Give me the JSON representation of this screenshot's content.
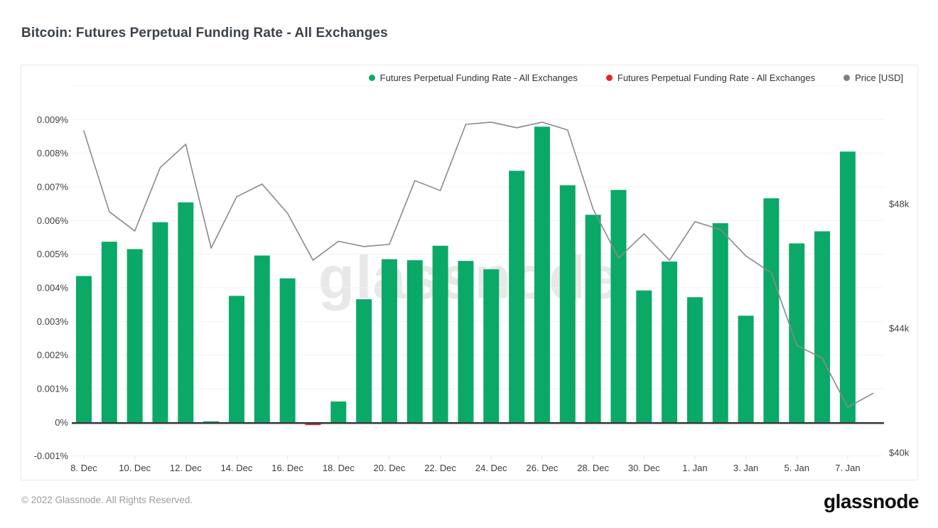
{
  "header": {
    "title": "Bitcoin: Futures Perpetual Funding Rate - All Exchanges"
  },
  "legend": {
    "items": [
      {
        "label": "Futures Perpetual Funding Rate - All Exchanges",
        "color": "#0ba968"
      },
      {
        "label": "Futures Perpetual Funding Rate - All Exchanges",
        "color": "#e0282b"
      },
      {
        "label": "Price [USD]",
        "color": "#808080"
      }
    ]
  },
  "watermark": {
    "text": "glassnode"
  },
  "footer": {
    "copyright": "© 2022 Glassnode. All Rights Reserved.",
    "logo_text": "glassnode"
  },
  "colors": {
    "positive_bar": "#0ba968",
    "negative_bar": "#e0282b",
    "price_line": "#8a8a8a",
    "gridline": "#f3f3f4",
    "zero_axis": "#3c3e40"
  },
  "chart_data": {
    "type": "bar+line",
    "title": "Bitcoin: Futures Perpetual Funding Rate - All Exchanges",
    "grid": "horizontal",
    "legend_position": "top-right",
    "categories": [
      "8. Dec",
      "9. Dec",
      "10. Dec",
      "11. Dec",
      "12. Dec",
      "13. Dec",
      "14. Dec",
      "15. Dec",
      "16. Dec",
      "17. Dec",
      "18. Dec",
      "19. Dec",
      "20. Dec",
      "21. Dec",
      "22. Dec",
      "23. Dec",
      "24. Dec",
      "25. Dec",
      "26. Dec",
      "27. Dec",
      "28. Dec",
      "29. Dec",
      "30. Dec",
      "31. Dec",
      "1. Jan",
      "2. Jan",
      "3. Jan",
      "4. Jan",
      "5. Jan",
      "6. Jan",
      "7. Jan"
    ],
    "series": [
      {
        "name": "Futures Perpetual Funding Rate - All Exchanges",
        "type": "bar",
        "axis": "left",
        "unit": "%",
        "color_positive": "#0ba968",
        "color_negative": "#e0282b",
        "values": [
          0.00435,
          0.00537,
          0.00515,
          0.00595,
          0.00654,
          3e-05,
          0.00376,
          0.00496,
          0.00428,
          -5e-05,
          0.00062,
          0.00366,
          0.00485,
          0.00482,
          0.00525,
          0.0048,
          0.00455,
          0.00748,
          0.00879,
          0.00705,
          0.00617,
          0.00691,
          0.00392,
          0.00478,
          0.00372,
          0.00592,
          0.00317,
          0.00666,
          0.00532,
          0.00568,
          0.00805
        ]
      },
      {
        "name": "Price [USD]",
        "type": "line",
        "axis": "right",
        "color": "#8a8a8a",
        "dates": [
          "8. Dec",
          "9. Dec",
          "10. Dec",
          "11. Dec",
          "12. Dec",
          "13. Dec",
          "14. Dec",
          "15. Dec",
          "16. Dec",
          "17. Dec",
          "18. Dec",
          "19. Dec",
          "20. Dec",
          "21. Dec",
          "22. Dec",
          "23. Dec",
          "24. Dec",
          "25. Dec",
          "26. Dec",
          "27. Dec",
          "28. Dec",
          "29. Dec",
          "30. Dec",
          "31. Dec",
          "1. Jan",
          "2. Jan",
          "3. Jan",
          "4. Jan",
          "5. Jan",
          "6. Jan",
          "7. Jan",
          "8. Jan"
        ],
        "values_usd": [
          50350,
          47750,
          47130,
          49170,
          49920,
          46580,
          48230,
          48640,
          47700,
          46190,
          46800,
          46630,
          46700,
          48750,
          48430,
          50560,
          50630,
          50450,
          50630,
          50380,
          47840,
          46260,
          47040,
          46190,
          47430,
          47180,
          46330,
          45780,
          43450,
          43040,
          41460,
          41910
        ]
      }
    ],
    "y_left": {
      "unit": "%",
      "min": -0.001,
      "max": 0.01,
      "tick_step": 0.001,
      "ticks": [
        {
          "label": "0.009%",
          "value": 0.009
        },
        {
          "label": "0.008%",
          "value": 0.008
        },
        {
          "label": "0.007%",
          "value": 0.007
        },
        {
          "label": "0.006%",
          "value": 0.006
        },
        {
          "label": "0.005%",
          "value": 0.005
        },
        {
          "label": "0.004%",
          "value": 0.004
        },
        {
          "label": "0.003%",
          "value": 0.003
        },
        {
          "label": "0.002%",
          "value": 0.002
        },
        {
          "label": "0.001%",
          "value": 0.001
        },
        {
          "label": "0%",
          "value": 0
        },
        {
          "label": "-0.001%",
          "value": -0.001
        }
      ]
    },
    "y_right": {
      "unit": "USD",
      "ticks": [
        {
          "label": "$48k",
          "value": 48000
        },
        {
          "label": "$44k",
          "value": 44000
        },
        {
          "label": "$40k",
          "value": 40000
        }
      ]
    },
    "x_ticks": [
      {
        "index": 0,
        "label": "8. Dec"
      },
      {
        "index": 2,
        "label": "10. Dec"
      },
      {
        "index": 4,
        "label": "12. Dec"
      },
      {
        "index": 6,
        "label": "14. Dec"
      },
      {
        "index": 8,
        "label": "16. Dec"
      },
      {
        "index": 10,
        "label": "18. Dec"
      },
      {
        "index": 12,
        "label": "20. Dec"
      },
      {
        "index": 14,
        "label": "22. Dec"
      },
      {
        "index": 16,
        "label": "24. Dec"
      },
      {
        "index": 18,
        "label": "26. Dec"
      },
      {
        "index": 20,
        "label": "28. Dec"
      },
      {
        "index": 22,
        "label": "30. Dec"
      },
      {
        "index": 24,
        "label": "1. Jan"
      },
      {
        "index": 26,
        "label": "3. Jan"
      },
      {
        "index": 28,
        "label": "5. Jan"
      },
      {
        "index": 30,
        "label": "7. Jan"
      }
    ]
  }
}
